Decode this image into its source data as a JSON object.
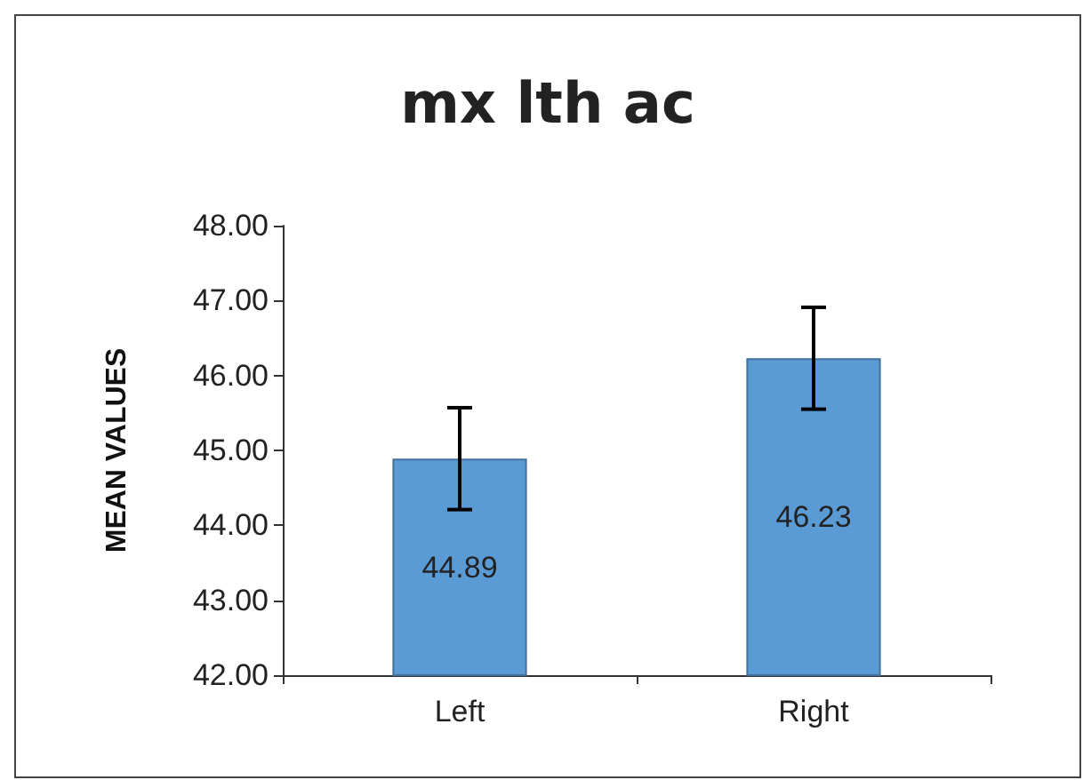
{
  "chart_data": {
    "type": "bar",
    "title": "mx lth ac",
    "ylabel": "MEAN VALUES",
    "categories": [
      "Left",
      "Right"
    ],
    "values": [
      44.89,
      46.23
    ],
    "errors": [
      0.68,
      0.68
    ],
    "color": "#5b9bd5",
    "ylim": [
      42,
      48
    ],
    "yticks": [
      {
        "value": 42,
        "label": "42.00"
      },
      {
        "value": 43,
        "label": "43.00"
      },
      {
        "value": 44,
        "label": "44.00"
      },
      {
        "value": 45,
        "label": "45.00"
      },
      {
        "value": 46,
        "label": "46.00"
      },
      {
        "value": 47,
        "label": "47.00"
      },
      {
        "value": 48,
        "label": "48.00"
      }
    ],
    "data_labels": true,
    "grid": false
  }
}
